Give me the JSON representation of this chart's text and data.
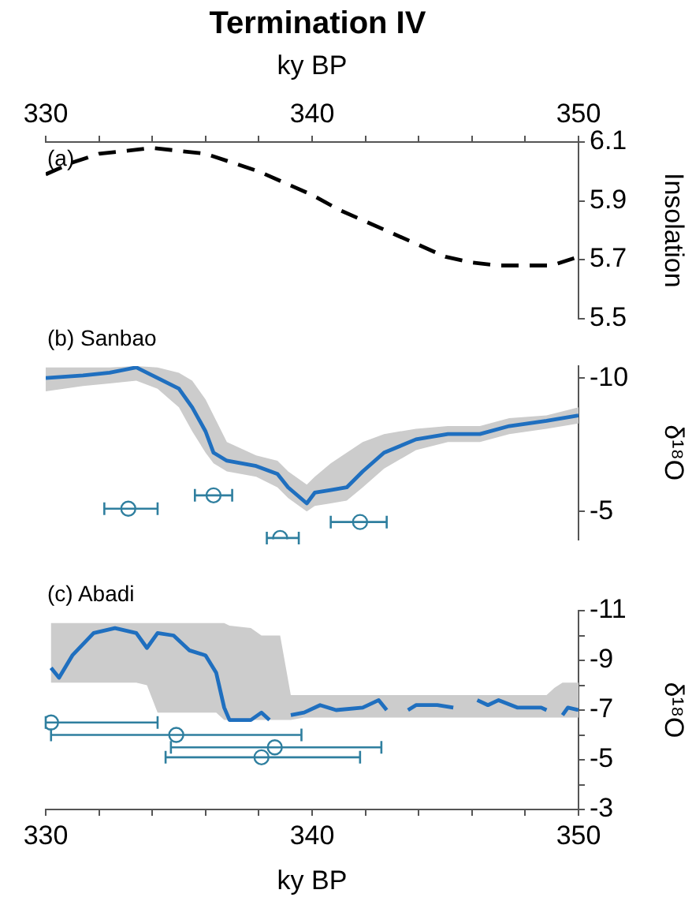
{
  "chart_data": [
    {
      "type": "line",
      "title": "Termination IV",
      "xlabel": "ky BP",
      "ylabel": "Insolation",
      "annotations": [
        "(a)"
      ],
      "xlim": [
        330,
        350
      ],
      "xticks": [
        330,
        {
          "value": 332,
          "label": null
        },
        {
          "value": 334,
          "label": null
        },
        {
          "value": 336,
          "label": null
        },
        {
          "value": 338,
          "label": null
        },
        340,
        {
          "value": 342,
          "label": null
        },
        {
          "value": 344,
          "label": null
        },
        {
          "value": 346,
          "label": null
        },
        {
          "value": 348,
          "label": null
        },
        350
      ],
      "ylim": [
        5.5,
        6.1
      ],
      "yticks": [
        5.5,
        5.7,
        5.9,
        6.1
      ],
      "series": [
        {
          "color": "#000000",
          "line_style": "dashed",
          "x": [
            330,
            331,
            332,
            333,
            334,
            335,
            336,
            337,
            338,
            339,
            340,
            341,
            342,
            343,
            344,
            345,
            346,
            347,
            348,
            349,
            350
          ],
          "values": [
            5.99,
            6.03,
            6.06,
            6.07,
            6.08,
            6.07,
            6.06,
            6.03,
            6.0,
            5.96,
            5.92,
            5.87,
            5.83,
            5.79,
            5.75,
            5.71,
            5.69,
            5.68,
            5.68,
            5.68,
            5.71
          ]
        }
      ]
    },
    {
      "type": "line",
      "ylabel": "δ¹⁸O",
      "annotations": [
        "(b) Sanbao"
      ],
      "xlim": [
        330,
        350
      ],
      "ylim": [
        -3.95,
        -10.45
      ],
      "yticks": [
        -10,
        -5
      ],
      "tick_labels": "y",
      "series": [
        {
          "color": "#1f6fbf",
          "x": [
            330,
            331.4,
            332.4,
            333.4,
            334.2,
            335.0,
            335.5,
            336.0,
            336.3,
            336.8,
            337.9,
            338.7,
            339.1,
            339.8,
            340.1,
            340.7,
            341.3,
            341.9,
            342.7,
            343.9,
            345.1,
            346.3,
            347.4,
            348.8,
            350
          ],
          "values": [
            -10.0,
            -10.1,
            -10.2,
            -10.4,
            -10.0,
            -9.6,
            -8.9,
            -8.0,
            -7.2,
            -6.9,
            -6.7,
            -6.4,
            -5.9,
            -5.3,
            -5.7,
            -5.8,
            -5.9,
            -6.5,
            -7.2,
            -7.7,
            -7.9,
            -7.9,
            -8.2,
            -8.4,
            -8.6
          ],
          "lower": [
            -10.4,
            -10.4,
            -10.4,
            -10.45,
            -10.4,
            -10.2,
            -9.9,
            -9.2,
            -8.6,
            -7.6,
            -7.1,
            -6.9,
            -6.5,
            -6.0,
            -6.3,
            -6.8,
            -7.2,
            -7.6,
            -7.9,
            -8.1,
            -8.2,
            -8.2,
            -8.5,
            -8.6,
            -8.9
          ],
          "upper": [
            -9.5,
            -9.7,
            -9.8,
            -9.9,
            -9.6,
            -8.9,
            -8.0,
            -7.2,
            -6.8,
            -6.5,
            -6.3,
            -5.9,
            -5.5,
            -5.0,
            -5.2,
            -5.3,
            -5.4,
            -5.9,
            -6.6,
            -7.3,
            -7.6,
            -7.6,
            -7.9,
            -8.1,
            -8.3
          ]
        },
        {
          "type": "scatter",
          "marker": "circle",
          "color": "#2f7f9f",
          "x": [
            333.1,
            336.3,
            338.8,
            341.8
          ],
          "values": [
            -5.1,
            -5.6,
            -4.0,
            -4.6
          ],
          "xerrors": [
            [
              332.2,
              334.2
            ],
            [
              335.6,
              337.0
            ],
            [
              338.3,
              339.5
            ],
            [
              340.7,
              342.8
            ]
          ]
        }
      ]
    },
    {
      "type": "line",
      "xlabel": "ky BP",
      "ylabel": "δ¹⁸O",
      "annotations": [
        "(c) Abadi"
      ],
      "xlim": [
        330,
        350
      ],
      "xticks": [
        330,
        {
          "value": 332,
          "label": null
        },
        {
          "value": 334,
          "label": null
        },
        {
          "value": 336,
          "label": null
        },
        {
          "value": 338,
          "label": null
        },
        340,
        {
          "value": 342,
          "label": null
        },
        {
          "value": 344,
          "label": null
        },
        {
          "value": 346,
          "label": null
        },
        {
          "value": 348,
          "label": null
        },
        350
      ],
      "ylim": [
        -3,
        -11
      ],
      "yticks": [
        -11,
        {
          "value": -10,
          "label": null
        },
        -9,
        {
          "value": -8,
          "label": null
        },
        -7,
        {
          "value": -6,
          "label": null
        },
        -5,
        {
          "value": -4,
          "label": null
        },
        -3
      ],
      "series": [
        {
          "color": "#1f6fbf",
          "x": [
            330.2,
            330.5,
            331.0,
            331.8,
            332.6,
            333.4,
            333.8,
            334.2,
            334.8,
            335.4,
            336.0,
            336.4,
            336.7,
            336.9,
            337.7,
            338.1,
            338.4,
            338.8,
            339.2,
            339.7,
            340.3,
            340.9,
            341.9,
            342.5,
            342.8,
            343.2,
            343.6,
            343.9,
            344.7,
            345.3,
            345.75,
            346.2,
            346.6,
            347.0,
            347.7,
            348.6,
            348.8,
            349.1,
            349.4,
            349.6,
            350
          ],
          "values": [
            -8.7,
            -8.3,
            -9.2,
            -10.1,
            -10.3,
            -10.1,
            -9.5,
            -10.1,
            -10.0,
            -9.4,
            -9.2,
            -8.5,
            -7.1,
            -6.6,
            -6.6,
            -6.9,
            -6.6,
            null,
            -6.8,
            -6.9,
            -7.2,
            -7.0,
            -7.1,
            -7.4,
            -7.0,
            null,
            -7.0,
            -7.2,
            -7.2,
            -7.1,
            null,
            -7.4,
            -7.2,
            -7.4,
            -7.1,
            -7.1,
            -7.0,
            null,
            -6.8,
            -7.1,
            -7.0
          ],
          "lower": [
            -10.5,
            -10.5,
            -10.5,
            -10.5,
            -10.5,
            -10.5,
            -10.5,
            -10.5,
            -10.5,
            -10.5,
            -10.5,
            -10.5,
            -10.5,
            -10.4,
            -10.3,
            -10.0,
            -10.0,
            -10.0,
            -7.6,
            -7.6,
            -7.6,
            -7.6,
            -7.6,
            -7.6,
            -7.6,
            -7.6,
            -7.6,
            -7.6,
            -7.6,
            -7.6,
            -7.6,
            -7.6,
            -7.6,
            -7.6,
            -7.6,
            -7.6,
            -7.6,
            -7.9,
            -8.1,
            -8.1,
            -8.1
          ],
          "upper": [
            -8.1,
            -8.1,
            -8.1,
            -8.1,
            -8.1,
            -8.1,
            -8.0,
            -6.9,
            -6.9,
            -6.9,
            -6.9,
            -6.9,
            -6.6,
            -6.6,
            -6.6,
            -6.6,
            -6.6,
            -6.6,
            -6.6,
            -6.7,
            -6.7,
            -6.7,
            -6.7,
            -6.7,
            -6.7,
            -6.7,
            -6.7,
            -6.7,
            -6.7,
            -6.7,
            -6.7,
            -6.7,
            -6.7,
            -6.7,
            -6.7,
            -6.7,
            -6.7,
            -6.7,
            -6.7,
            -6.7,
            -6.7
          ]
        },
        {
          "type": "scatter",
          "marker": "circle",
          "color": "#2f7f9f",
          "x": [
            330.2,
            334.9,
            338.6,
            338.1
          ],
          "values": [
            -6.5,
            -6.0,
            -5.5,
            -5.1
          ],
          "xerrors": [
            [
              330.0,
              334.2
            ],
            [
              330.2,
              339.6
            ],
            [
              334.7,
              342.6
            ],
            [
              334.5,
              341.8
            ]
          ]
        }
      ]
    }
  ]
}
